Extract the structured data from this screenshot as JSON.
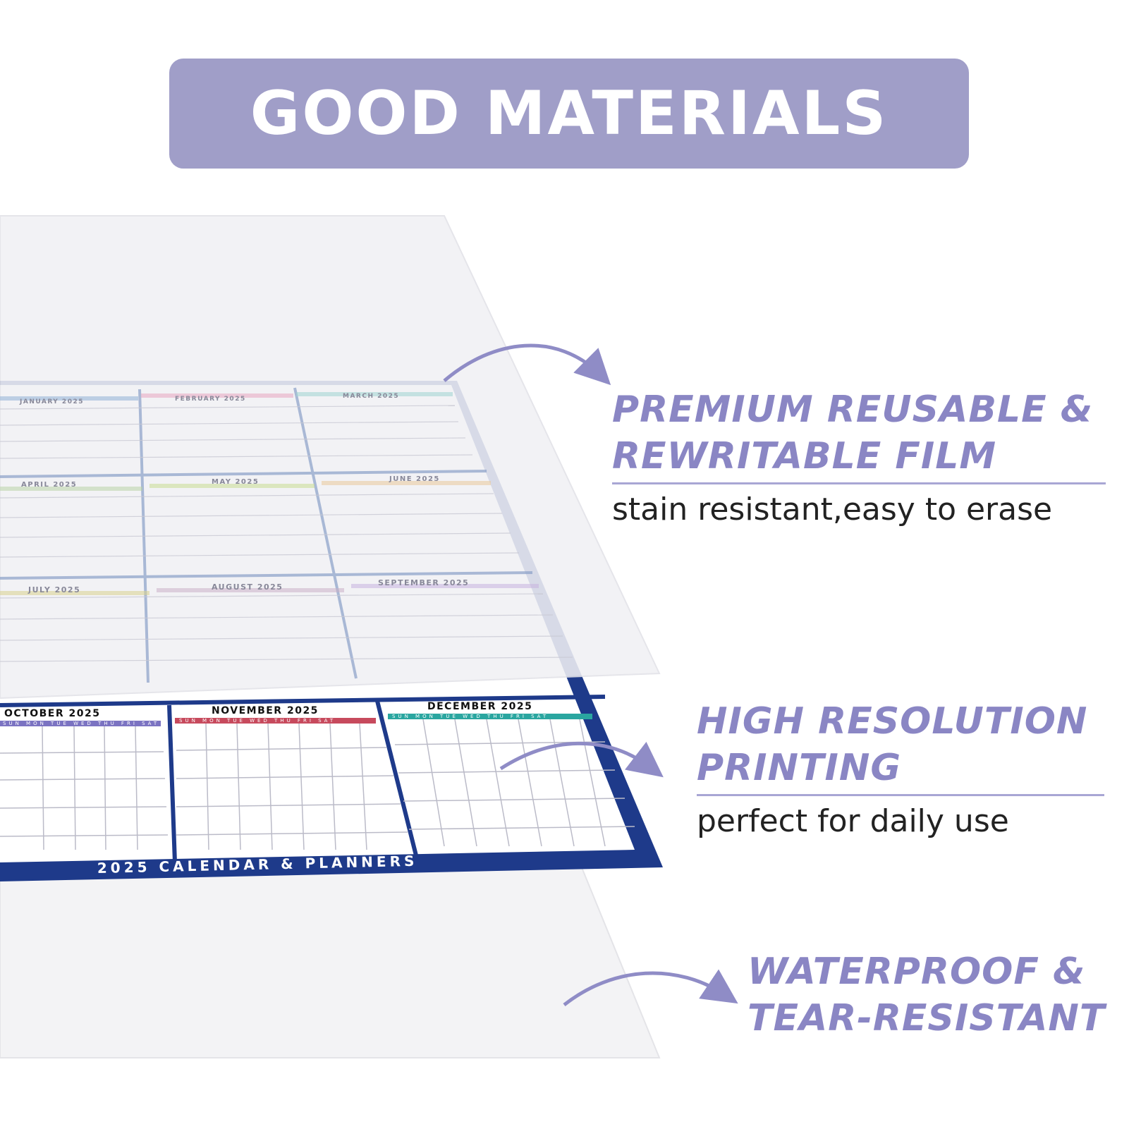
{
  "banner": {
    "title": "GOOD MATERIALS"
  },
  "features": [
    {
      "heading_line1": "PREMIUM REUSABLE &",
      "heading_line2": "REWRITABLE FILM",
      "subtitle": "stain resistant,easy to erase"
    },
    {
      "heading_line1": "HIGH RESOLUTION",
      "heading_line2": "PRINTING",
      "subtitle": "perfect for daily use"
    },
    {
      "heading_line1": "WATERPROOF &",
      "heading_line2": "TEAR-RESISTANT"
    }
  ],
  "calendar": {
    "footer": "2025 CALENDAR & PLANNERS",
    "border_color": "#1e3a8a",
    "accent_colors": {
      "january": "#8fb0d6",
      "february": "#e7a6bf",
      "march": "#9fd3cf",
      "april": "#b9d3a6",
      "may": "#c9dc8f",
      "june": "#e9c899",
      "july": "#d9d28c",
      "august": "#cbb0c6",
      "september": "#c6b2de",
      "october": "#7b73c2",
      "november": "#c74a5d",
      "december": "#2aa6a0"
    },
    "months": [
      {
        "name": "JANUARY 2025",
        "weekdays": ""
      },
      {
        "name": "FEBRUARY 2025",
        "weekdays": ""
      },
      {
        "name": "MARCH 2025",
        "weekdays": ""
      },
      {
        "name": "APRIL 2025",
        "weekdays": ""
      },
      {
        "name": "MAY 2025",
        "weekdays": ""
      },
      {
        "name": "JUNE 2025",
        "weekdays": ""
      },
      {
        "name": "JULY 2025",
        "weekdays": ""
      },
      {
        "name": "AUGUST 2025",
        "weekdays": ""
      },
      {
        "name": "SEPTEMBER 2025",
        "weekdays": ""
      },
      {
        "name": "OCTOBER 2025",
        "weekdays": "SUN MON TUE WED THU FRI SAT"
      },
      {
        "name": "NOVEMBER 2025",
        "weekdays": "SUN MON TUE WED THU FRI SAT"
      },
      {
        "name": "DECEMBER 2025",
        "weekdays": "SUN MON TUE WED THU FRI SAT"
      }
    ]
  },
  "colors": {
    "banner_bg": "#a09ec8",
    "heading": "#8a86c4",
    "rule": "#a8a6d4",
    "arrow": "#8f8cc6",
    "subtitle": "#222222"
  }
}
